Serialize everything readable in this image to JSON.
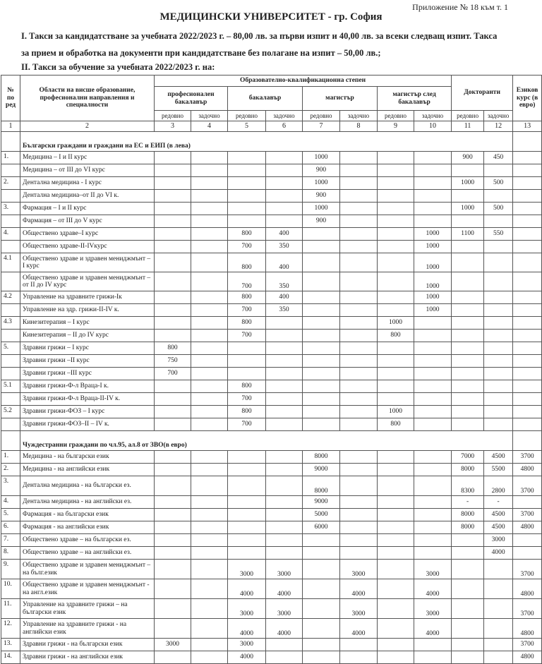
{
  "annex": "Приложение № 18 към т. 1",
  "title": "МЕДИЦИНСКИ УНИВЕРСИТЕТ - гр. София",
  "para1_line1": "I. Такси за кандидатстване за учебната 2022/2023 г. – 80,00 лв. за първи изпит и 40,00  лв. за всеки следващ изпит. Такса",
  "para1_line2": "за прием и обработка на документи при кандидатстване без полагане на изпит – 50,00 лв.;",
  "para2": "II. Такси за обучение за учебната 2022/2023 г. на:",
  "header": {
    "no": "№ по ред",
    "areas": "Области на висше образование, професионални направления и специалности",
    "degree": "Образователно-квалификационна степен",
    "prof_bachelor": "професионален бакалавър",
    "bachelor": "бакалавър",
    "master": "магистър",
    "master_after": "магистър след бакалавър",
    "doctoral": "Докторанти",
    "language": "Езиков курс (в евро)",
    "full_time": "редовно",
    "part_time": "задочно",
    "col_numbers": [
      "1",
      "2",
      "3",
      "4",
      "5",
      "6",
      "7",
      "8",
      "9",
      "10",
      "11",
      "12",
      "13"
    ]
  },
  "sections": [
    {
      "title": "Български граждани и граждани на ЕС и ЕИП (в лева)",
      "rows": [
        {
          "no": "1.",
          "name": "Медицина – I и II курс",
          "v": [
            "",
            "",
            "",
            "",
            "1000",
            "",
            "",
            "",
            "900",
            "450",
            ""
          ]
        },
        {
          "no": "",
          "name": "Медицина – от III до VI курс",
          "v": [
            "",
            "",
            "",
            "",
            "900",
            "",
            "",
            "",
            "",
            "",
            ""
          ]
        },
        {
          "no": "2.",
          "name": "Дентална медицина - I курс",
          "v": [
            "",
            "",
            "",
            "",
            "1000",
            "",
            "",
            "",
            "1000",
            "500",
            ""
          ]
        },
        {
          "no": "",
          "name": "Дентална медицина–от II до VI к.",
          "v": [
            "",
            "",
            "",
            "",
            "900",
            "",
            "",
            "",
            "",
            "",
            ""
          ]
        },
        {
          "no": "3.",
          "name": "Фармация – I и II курс",
          "v": [
            "",
            "",
            "",
            "",
            "1000",
            "",
            "",
            "",
            "1000",
            "500",
            ""
          ]
        },
        {
          "no": "",
          "name": "Фармация – от III до V курс",
          "v": [
            "",
            "",
            "",
            "",
            "900",
            "",
            "",
            "",
            "",
            "",
            ""
          ]
        },
        {
          "no": "4.",
          "name": "Обществено здраве–I курс",
          "v": [
            "",
            "",
            "800",
            "400",
            "",
            "",
            "",
            "1000",
            "1100",
            "550",
            ""
          ]
        },
        {
          "no": "",
          "name": "Обществено здраве-II-IVкурс",
          "v": [
            "",
            "",
            "700",
            "350",
            "",
            "",
            "",
            "1000",
            "",
            "",
            ""
          ]
        },
        {
          "no": "4.1",
          "name": "Обществено здраве и здравен мениджмънт – I курс",
          "double": true,
          "v": [
            "",
            "",
            "800",
            "400",
            "",
            "",
            "",
            "1000",
            "",
            "",
            ""
          ]
        },
        {
          "no": "",
          "name": "Обществено здраве и здравен мениджмънт – от II до IV курс",
          "double": true,
          "v": [
            "",
            "",
            "700",
            "350",
            "",
            "",
            "",
            "1000",
            "",
            "",
            ""
          ]
        },
        {
          "no": "4.2",
          "name": "Управление на здравните грижи-Iк",
          "v": [
            "",
            "",
            "800",
            "400",
            "",
            "",
            "",
            "1000",
            "",
            "",
            ""
          ]
        },
        {
          "no": "",
          "name": "Управление на здр. грижи-II-IV к.",
          "v": [
            "",
            "",
            "700",
            "350",
            "",
            "",
            "",
            "1000",
            "",
            "",
            ""
          ]
        },
        {
          "no": "4.3",
          "name": "Кинезитерапия – I курс",
          "v": [
            "",
            "",
            "800",
            "",
            "",
            "",
            "1000",
            "",
            "",
            "",
            ""
          ]
        },
        {
          "no": "",
          "name": "Кинезитерапия – II до IV курс",
          "v": [
            "",
            "",
            "700",
            "",
            "",
            "",
            "800",
            "",
            "",
            "",
            ""
          ]
        },
        {
          "no": "5.",
          "name": "Здравни грижи – I курс",
          "v": [
            "800",
            "",
            "",
            "",
            "",
            "",
            "",
            "",
            "",
            "",
            ""
          ]
        },
        {
          "no": "",
          "name": "Здравни грижи –II курс",
          "v": [
            "750",
            "",
            "",
            "",
            "",
            "",
            "",
            "",
            "",
            "",
            ""
          ]
        },
        {
          "no": "",
          "name": "Здравни грижи –III курс",
          "v": [
            "700",
            "",
            "",
            "",
            "",
            "",
            "",
            "",
            "",
            "",
            ""
          ]
        },
        {
          "no": "5.1",
          "name": "Здравни грижи-Ф-л Враца-I к.",
          "v": [
            "",
            "",
            "800",
            "",
            "",
            "",
            "",
            "",
            "",
            "",
            ""
          ]
        },
        {
          "no": "",
          "name": "Здравни грижи-Ф-л Враца-II-IV к.",
          "v": [
            "",
            "",
            "700",
            "",
            "",
            "",
            "",
            "",
            "",
            "",
            ""
          ]
        },
        {
          "no": "5.2",
          "name": "Здравни грижи-ФОЗ – I курс",
          "v": [
            "",
            "",
            "800",
            "",
            "",
            "",
            "1000",
            "",
            "",
            "",
            ""
          ]
        },
        {
          "no": "",
          "name": "Здравни грижи-ФОЗ–II – IV  к.",
          "v": [
            "",
            "",
            "700",
            "",
            "",
            "",
            "800",
            "",
            "",
            "",
            ""
          ]
        }
      ]
    },
    {
      "title": "Чуждестранни граждани по чл.95, ал.8 от ЗВО(в евро)",
      "rows": [
        {
          "no": "1.",
          "name": "Медицина - на български език",
          "v": [
            "",
            "",
            "",
            "",
            "8000",
            "",
            "",
            "",
            "7000",
            "4500",
            "3700"
          ]
        },
        {
          "no": "2.",
          "name": "Медицина - на английски език",
          "v": [
            "",
            "",
            "",
            "",
            "9000",
            "",
            "",
            "",
            "8000",
            "5500",
            "4800"
          ]
        },
        {
          "no": "3.",
          "name": "Дентална медицина - на български ез.",
          "double": true,
          "v": [
            "",
            "",
            "",
            "",
            "8000",
            "",
            "",
            "",
            "8300",
            "2800",
            "3700"
          ]
        },
        {
          "no": "4.",
          "name": "Дентална медицина - на английски ез.",
          "v": [
            "",
            "",
            "",
            "",
            "9000",
            "",
            "",
            "",
            "-",
            "-",
            ""
          ]
        },
        {
          "no": "5.",
          "name": "Фармация - на български език",
          "v": [
            "",
            "",
            "",
            "",
            "5000",
            "",
            "",
            "",
            "8000",
            "4500",
            "3700"
          ]
        },
        {
          "no": "6.",
          "name": "Фармация - на английски език",
          "v": [
            "",
            "",
            "",
            "",
            "6000",
            "",
            "",
            "",
            "8000",
            "4500",
            "4800"
          ]
        },
        {
          "no": "7.",
          "name": "Обществено здраве – на български ез.",
          "v": [
            "",
            "",
            "",
            "",
            "",
            "",
            "",
            "",
            "",
            "3000",
            ""
          ]
        },
        {
          "no": "8.",
          "name": "Обществено здраве – на английски ез.",
          "v": [
            "",
            "",
            "",
            "",
            "",
            "",
            "",
            "",
            "",
            "4000",
            ""
          ]
        },
        {
          "no": "9.",
          "name": "Обществено здраве и здравен мениджмънт – на бълг.език",
          "double": true,
          "v": [
            "",
            "",
            "3000",
            "3000",
            "",
            "3000",
            "",
            "3000",
            "",
            "",
            "3700"
          ]
        },
        {
          "no": "10.",
          "name": "Обществено здраве и здравен мениджмънт -  на англ.език",
          "double": true,
          "v": [
            "",
            "",
            "4000",
            "4000",
            "",
            "4000",
            "",
            "4000",
            "",
            "",
            "4800"
          ]
        },
        {
          "no": "11.",
          "name": "Управление на здравните грижи – на български език",
          "double": true,
          "v": [
            "",
            "",
            "3000",
            "3000",
            "",
            "3000",
            "",
            "3000",
            "",
            "",
            "3700"
          ]
        },
        {
          "no": "12.",
          "name": "Управление на здравните грижи - на английски език",
          "double": true,
          "v": [
            "",
            "",
            "4000",
            "4000",
            "",
            "4000",
            "",
            "4000",
            "",
            "",
            "4800"
          ]
        },
        {
          "no": "13.",
          "name": "Здравни грижи - на български език",
          "v": [
            "3000",
            "",
            "3000",
            "",
            "",
            "",
            "",
            "",
            "",
            "",
            "3700"
          ]
        },
        {
          "no": "14.",
          "name": "Здравни грижи - на английски език",
          "v": [
            "",
            "",
            "4000",
            "",
            "",
            "",
            "",
            "",
            "",
            "",
            "4800"
          ]
        }
      ]
    }
  ]
}
